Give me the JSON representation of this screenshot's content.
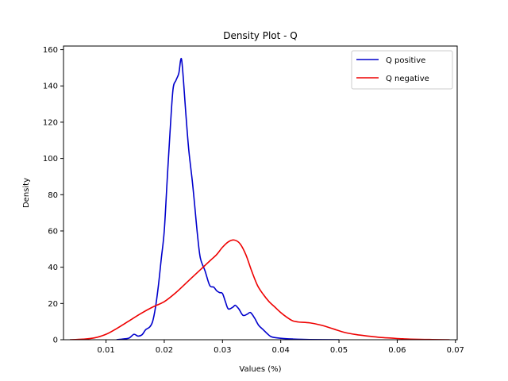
{
  "chart_data": {
    "type": "line",
    "title": "Density Plot - Q",
    "xlabel": "Values (%)",
    "ylabel": "Density",
    "xlim": [
      0.0027,
      0.0703
    ],
    "ylim": [
      0,
      162
    ],
    "xticks": [
      0.01,
      0.02,
      0.03,
      0.04,
      0.05,
      0.06,
      0.07
    ],
    "xtick_labels": [
      "0.01",
      "0.02",
      "0.03",
      "0.04",
      "0.05",
      "0.06",
      "0.07"
    ],
    "yticks": [
      0,
      20,
      40,
      60,
      80,
      100,
      120,
      140,
      160
    ],
    "ytick_labels": [
      "0",
      "20",
      "40",
      "60",
      "80",
      "100",
      "120",
      "140",
      "160"
    ],
    "grid": false,
    "legend_position": "top-right",
    "series": [
      {
        "name": "Q positive",
        "color": "#0000cc",
        "points": [
          [
            0.0118,
            0.0
          ],
          [
            0.013,
            0.4
          ],
          [
            0.014,
            1.0
          ],
          [
            0.0148,
            3.0
          ],
          [
            0.0155,
            2.0
          ],
          [
            0.0162,
            2.8
          ],
          [
            0.0168,
            5.5
          ],
          [
            0.0175,
            7.0
          ],
          [
            0.018,
            10.0
          ],
          [
            0.0185,
            18.0
          ],
          [
            0.019,
            30.0
          ],
          [
            0.0195,
            45.0
          ],
          [
            0.02,
            60.0
          ],
          [
            0.0205,
            88.0
          ],
          [
            0.021,
            115.0
          ],
          [
            0.0215,
            138.0
          ],
          [
            0.022,
            143.0
          ],
          [
            0.0225,
            147.0
          ],
          [
            0.0228,
            154.0
          ],
          [
            0.023,
            154.0
          ],
          [
            0.0233,
            143.0
          ],
          [
            0.0237,
            125.0
          ],
          [
            0.0242,
            105.0
          ],
          [
            0.0248,
            88.0
          ],
          [
            0.0252,
            75.0
          ],
          [
            0.0257,
            58.0
          ],
          [
            0.0262,
            45.0
          ],
          [
            0.027,
            38.0
          ],
          [
            0.0278,
            30.0
          ],
          [
            0.0285,
            29.0
          ],
          [
            0.029,
            27.0
          ],
          [
            0.0295,
            26.0
          ],
          [
            0.03,
            25.5
          ],
          [
            0.0305,
            21.0
          ],
          [
            0.031,
            17.0
          ],
          [
            0.0318,
            18.0
          ],
          [
            0.0322,
            19.0
          ],
          [
            0.0328,
            17.0
          ],
          [
            0.0335,
            13.5
          ],
          [
            0.0342,
            14.0
          ],
          [
            0.0348,
            15.0
          ],
          [
            0.0355,
            12.0
          ],
          [
            0.0362,
            8.0
          ],
          [
            0.037,
            5.5
          ],
          [
            0.0378,
            3.0
          ],
          [
            0.0385,
            1.5
          ],
          [
            0.04,
            0.8
          ],
          [
            0.042,
            0.4
          ],
          [
            0.045,
            0.1
          ],
          [
            0.05,
            0.0
          ]
        ]
      },
      {
        "name": "Q negative",
        "color": "#ee0000",
        "points": [
          [
            0.0038,
            0.0
          ],
          [
            0.006,
            0.3
          ],
          [
            0.008,
            1.0
          ],
          [
            0.01,
            3.0
          ],
          [
            0.012,
            6.5
          ],
          [
            0.014,
            10.5
          ],
          [
            0.016,
            14.5
          ],
          [
            0.018,
            18.0
          ],
          [
            0.02,
            21.0
          ],
          [
            0.022,
            26.0
          ],
          [
            0.024,
            32.0
          ],
          [
            0.026,
            38.0
          ],
          [
            0.027,
            41.0
          ],
          [
            0.028,
            44.0
          ],
          [
            0.029,
            47.0
          ],
          [
            0.03,
            51.0
          ],
          [
            0.031,
            54.0
          ],
          [
            0.032,
            55.0
          ],
          [
            0.033,
            53.0
          ],
          [
            0.034,
            47.0
          ],
          [
            0.035,
            38.0
          ],
          [
            0.036,
            30.0
          ],
          [
            0.037,
            25.0
          ],
          [
            0.038,
            21.0
          ],
          [
            0.039,
            18.0
          ],
          [
            0.04,
            15.0
          ],
          [
            0.041,
            12.5
          ],
          [
            0.042,
            10.5
          ],
          [
            0.043,
            9.8
          ],
          [
            0.045,
            9.3
          ],
          [
            0.047,
            8.0
          ],
          [
            0.049,
            6.0
          ],
          [
            0.051,
            4.0
          ],
          [
            0.053,
            2.8
          ],
          [
            0.055,
            2.0
          ],
          [
            0.057,
            1.3
          ],
          [
            0.059,
            0.9
          ],
          [
            0.061,
            0.5
          ],
          [
            0.064,
            0.2
          ],
          [
            0.066,
            0.1
          ],
          [
            0.069,
            0.0
          ]
        ]
      }
    ]
  }
}
